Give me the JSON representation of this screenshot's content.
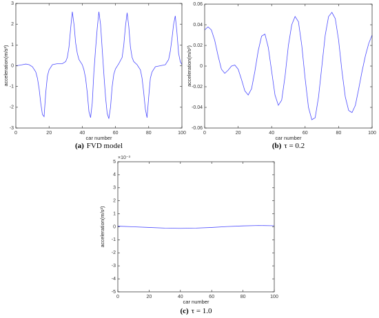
{
  "chart_data": [
    {
      "type": "line",
      "label": "(a)",
      "caption": "FVD model",
      "xlabel": "car number",
      "ylabel": "acceleration(m/s²)",
      "color": "#4b4bff",
      "xlim": [
        0,
        100
      ],
      "xticks": [
        0,
        20,
        40,
        60,
        80,
        100
      ],
      "ylim": [
        -3,
        3
      ],
      "yticks": [
        -3,
        -2,
        -1,
        0,
        1,
        2,
        3
      ],
      "x": [
        0,
        2,
        4,
        6,
        8,
        10,
        12,
        13,
        14,
        15,
        16,
        17,
        18,
        19,
        20,
        22,
        25,
        28,
        30,
        31,
        32,
        33,
        34,
        35,
        36,
        37,
        38,
        40,
        41,
        42,
        43,
        44,
        45,
        46,
        47,
        48,
        49,
        50,
        51,
        52,
        53,
        54,
        55,
        56,
        57,
        58,
        59,
        60,
        62,
        64,
        65,
        66,
        67,
        68,
        69,
        70,
        71,
        73,
        75,
        76,
        77,
        78,
        79,
        80,
        81,
        82,
        84,
        87,
        90,
        92,
        93,
        94,
        95,
        96,
        97,
        98,
        99,
        100
      ],
      "values": [
        0,
        0.02,
        0.05,
        0.08,
        0.05,
        -0.05,
        -0.3,
        -0.6,
        -1.1,
        -1.8,
        -2.35,
        -2.45,
        -1.3,
        -0.5,
        -0.2,
        0.05,
        0.1,
        0.1,
        0.2,
        0.4,
        0.9,
        1.8,
        2.6,
        2.0,
        1.1,
        0.6,
        0.3,
        0.05,
        -0.2,
        -0.6,
        -1.3,
        -2.2,
        -2.5,
        -1.8,
        -0.3,
        0.8,
        1.8,
        2.6,
        2.0,
        0.8,
        -0.4,
        -1.5,
        -2.3,
        -2.55,
        -2.0,
        -1.0,
        -0.4,
        -0.15,
        0.1,
        0.4,
        1.0,
        1.9,
        2.55,
        1.9,
        0.9,
        0.4,
        0.2,
        0.05,
        -0.2,
        -0.6,
        -1.3,
        -2.1,
        -2.5,
        -1.5,
        -0.6,
        -0.3,
        -0.05,
        0,
        0.05,
        0.3,
        0.7,
        1.3,
        2.0,
        2.4,
        1.6,
        0.6,
        0.2,
        0.05
      ]
    },
    {
      "type": "line",
      "label": "(b)",
      "caption": "τ = 0.2",
      "xlabel": "car number",
      "ylabel": "acceleration(m/s²)",
      "color": "#4b4bff",
      "xlim": [
        0,
        100
      ],
      "xticks": [
        0,
        20,
        40,
        60,
        80,
        100
      ],
      "ylim": [
        -0.06,
        0.06
      ],
      "yticks": [
        -0.06,
        -0.04,
        -0.02,
        0,
        0.02,
        0.04,
        0.06
      ],
      "x": [
        0,
        2,
        4,
        6,
        8,
        10,
        12,
        14,
        16,
        18,
        20,
        22,
        24,
        26,
        28,
        30,
        32,
        34,
        36,
        38,
        40,
        42,
        44,
        46,
        48,
        50,
        52,
        54,
        56,
        58,
        60,
        62,
        64,
        66,
        68,
        70,
        72,
        74,
        76,
        78,
        80,
        82,
        84,
        86,
        88,
        90,
        92,
        94,
        96,
        98,
        100
      ],
      "values": [
        0.035,
        0.038,
        0.035,
        0.025,
        0.01,
        -0.003,
        -0.007,
        -0.004,
        0.0,
        0.001,
        -0.003,
        -0.013,
        -0.024,
        -0.028,
        -0.022,
        -0.005,
        0.015,
        0.029,
        0.031,
        0.018,
        -0.005,
        -0.028,
        -0.038,
        -0.033,
        -0.01,
        0.02,
        0.04,
        0.048,
        0.043,
        0.02,
        -0.012,
        -0.04,
        -0.052,
        -0.05,
        -0.03,
        0.0,
        0.03,
        0.048,
        0.052,
        0.046,
        0.025,
        -0.005,
        -0.03,
        -0.043,
        -0.045,
        -0.038,
        -0.022,
        -0.005,
        0.01,
        0.022,
        0.03
      ]
    },
    {
      "type": "line",
      "label": "(c)",
      "caption": "τ = 1.0",
      "xlabel": "car number",
      "ylabel": "acceleration(m/s²)",
      "y_multiplier": "×10⁻³",
      "color": "#4b4bff",
      "xlim": [
        0,
        100
      ],
      "xticks": [
        0,
        20,
        40,
        60,
        80,
        100
      ],
      "ylim": [
        -5,
        5
      ],
      "yticks": [
        -5,
        -4,
        -3,
        -2,
        -1,
        0,
        1,
        2,
        3,
        4,
        5
      ],
      "x": [
        0,
        10,
        20,
        30,
        40,
        50,
        60,
        70,
        80,
        90,
        100
      ],
      "values": [
        0.05,
        0.0,
        -0.05,
        -0.1,
        -0.12,
        -0.1,
        -0.05,
        0.02,
        0.07,
        0.1,
        0.08
      ]
    }
  ]
}
